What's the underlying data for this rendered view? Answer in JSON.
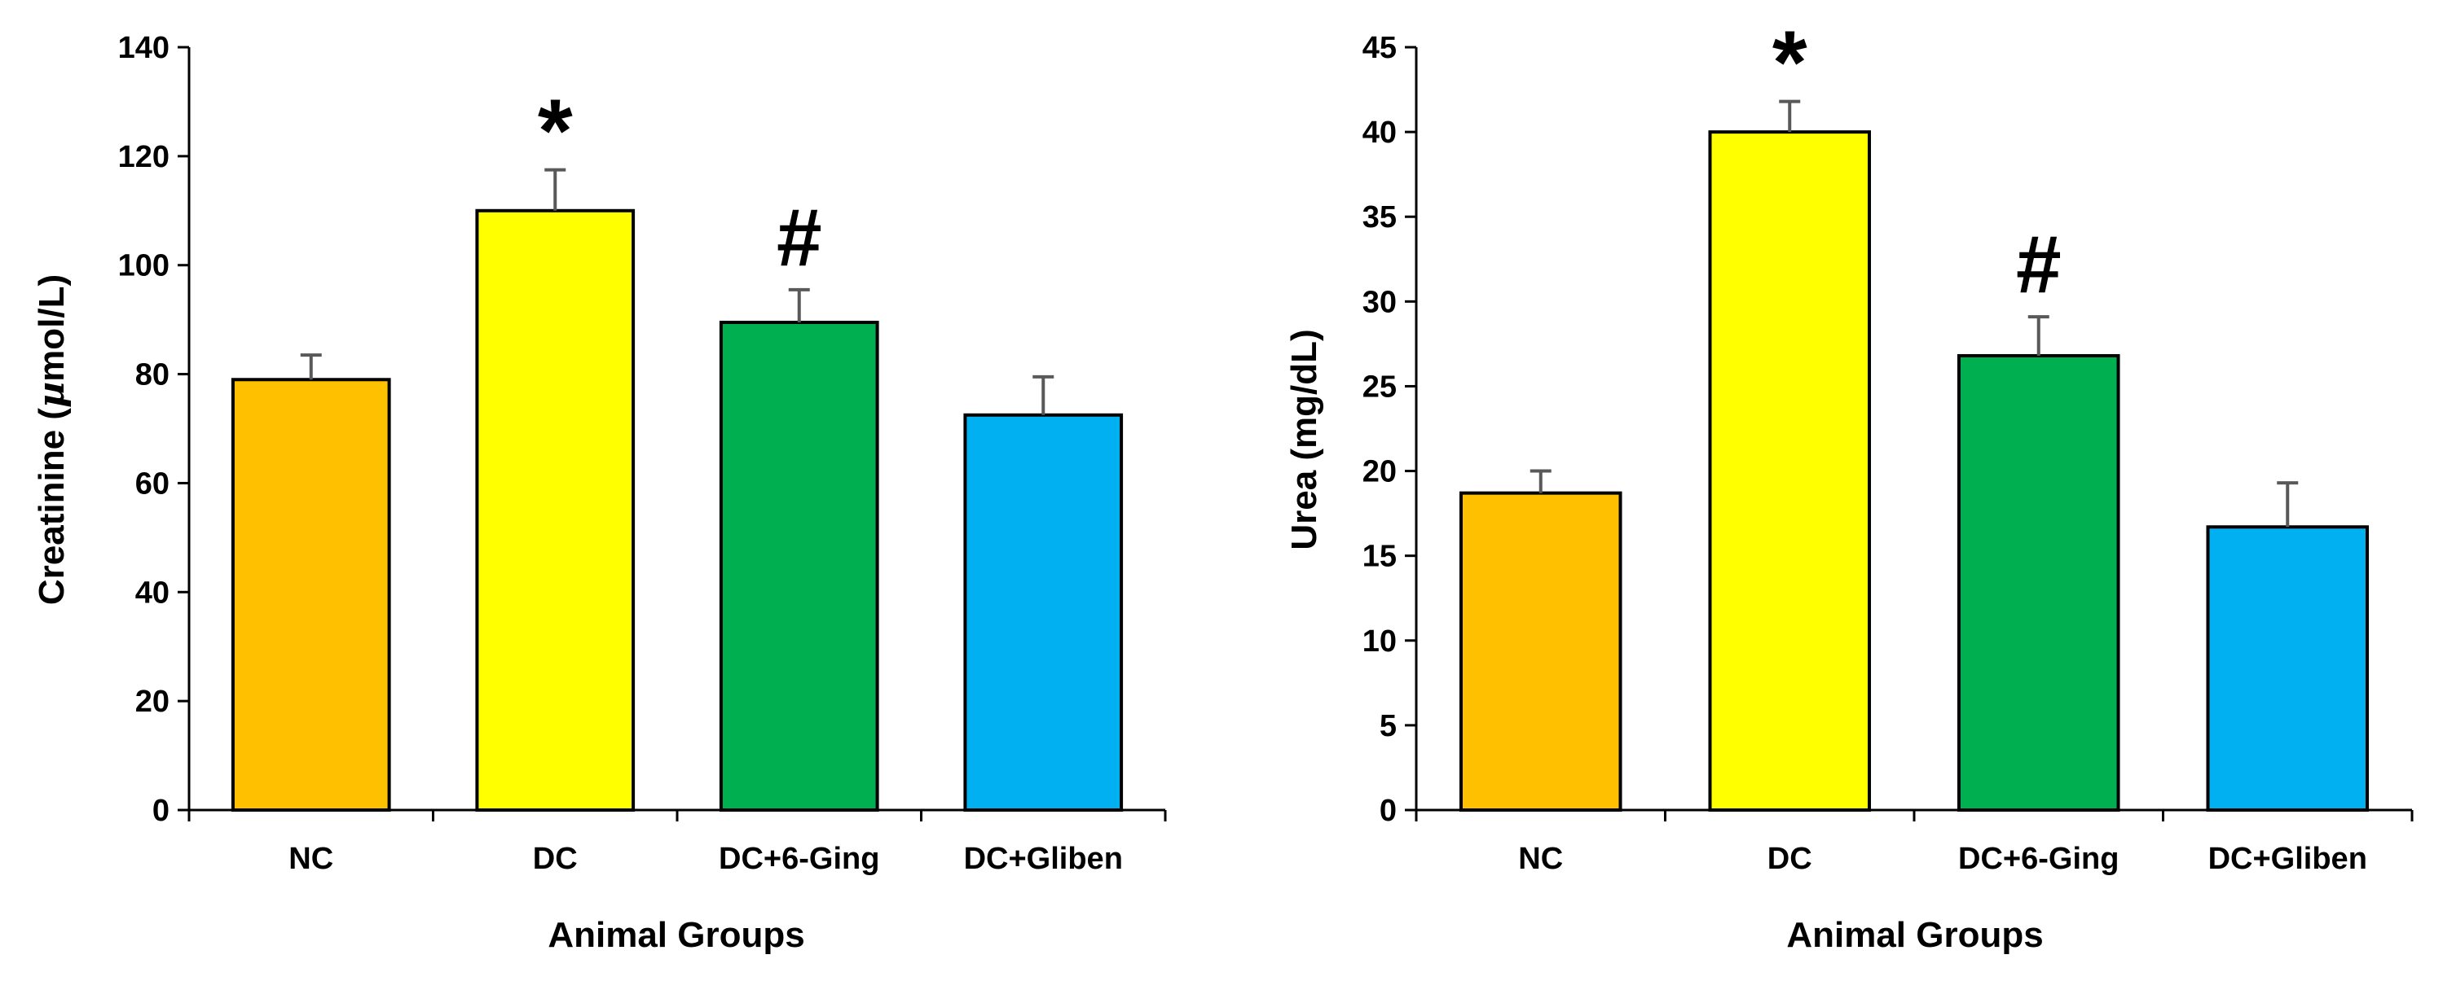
{
  "chart_data": [
    {
      "type": "bar",
      "title": "",
      "xlabel": "Animal Groups",
      "ylabel": "Creatinine (µmol/L)",
      "ylabel_prefix": "Creatinine (",
      "ylabel_mu": "µ",
      "ylabel_suffix": "mol/L)",
      "categories": [
        "NC",
        "DC",
        "DC+6-Ging",
        "DC+Gliben"
      ],
      "values": [
        79,
        110,
        89.5,
        72.5
      ],
      "errors": [
        4.5,
        7.5,
        6,
        7
      ],
      "colors": [
        "#FFC000",
        "#FFFF00",
        "#00B050",
        "#00B0F0"
      ],
      "ylim": [
        0,
        140
      ],
      "yticks": [
        "0",
        "20",
        "40",
        "60",
        "80",
        "100",
        "120",
        "140"
      ],
      "annotations": [
        {
          "category": "DC",
          "text": "*"
        },
        {
          "category": "DC+6-Ging",
          "text": "#"
        }
      ]
    },
    {
      "type": "bar",
      "title": "",
      "xlabel": "Animal Groups",
      "ylabel": "Urea (mg/dL)",
      "categories": [
        "NC",
        "DC",
        "DC+6-Ging",
        "DC+Gliben"
      ],
      "values": [
        18.7,
        40,
        26.8,
        16.7
      ],
      "errors": [
        1.3,
        1.8,
        2.3,
        2.6
      ],
      "colors": [
        "#FFC000",
        "#FFFF00",
        "#00B050",
        "#00B0F0"
      ],
      "ylim": [
        0,
        45
      ],
      "yticks": [
        "0",
        "5",
        "10",
        "15",
        "20",
        "25",
        "30",
        "35",
        "40",
        "45"
      ],
      "annotations": [
        {
          "category": "DC",
          "text": "*"
        },
        {
          "category": "DC+6-Ging",
          "text": "#"
        }
      ]
    }
  ]
}
